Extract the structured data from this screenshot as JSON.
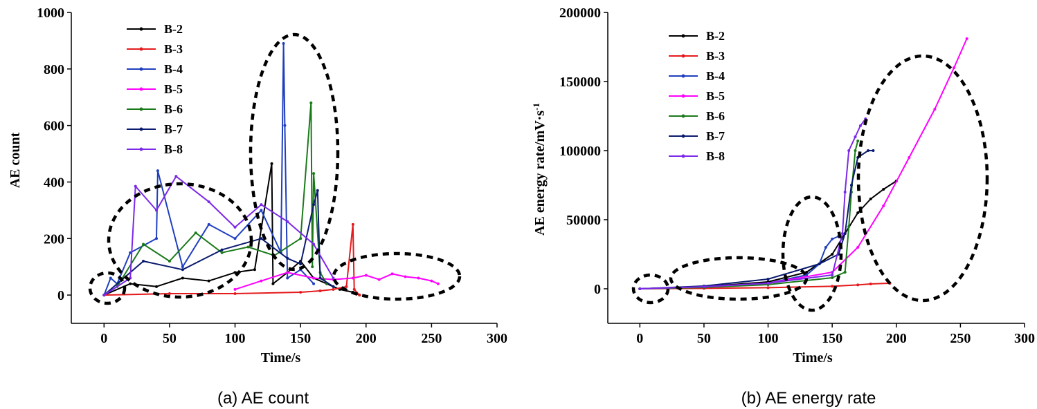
{
  "chart_data": [
    {
      "type": "line",
      "panel": "a",
      "caption": "(a) AE count",
      "xlabel": "Time/s",
      "ylabel": "AE count",
      "xlim": [
        -25,
        300
      ],
      "ylim": [
        -100,
        1000
      ],
      "xticks": [
        "0",
        "50",
        "100",
        "150",
        "200",
        "250",
        "300"
      ],
      "yticks": [
        "0",
        "200",
        "400",
        "600",
        "800",
        "1000"
      ],
      "legend": [
        "B-2",
        "B-3",
        "B-4",
        "B-5",
        "B-6",
        "B-7",
        "B-8"
      ],
      "series": [
        {
          "name": "B-2",
          "color": "#000000",
          "x": [
            0,
            20,
            40,
            60,
            80,
            100,
            115,
            128,
            129,
            140,
            150,
            160,
            170,
            180,
            190,
            195
          ],
          "values": [
            0,
            40,
            30,
            60,
            50,
            80,
            90,
            465,
            40,
            80,
            120,
            60,
            40,
            20,
            10,
            0
          ]
        },
        {
          "name": "B-3",
          "color": "#e41a1c",
          "x": [
            0,
            50,
            100,
            150,
            165,
            175,
            185,
            190,
            191,
            195
          ],
          "values": [
            0,
            5,
            5,
            10,
            15,
            20,
            30,
            250,
            20,
            0
          ]
        },
        {
          "name": "B-4",
          "color": "#1f3fbf",
          "x": [
            0,
            5,
            10,
            20,
            40,
            41,
            60,
            80,
            100,
            120,
            135,
            137,
            138,
            140,
            150,
            160
          ],
          "values": [
            0,
            60,
            40,
            150,
            200,
            440,
            100,
            250,
            200,
            300,
            150,
            890,
            600,
            60,
            90,
            40
          ]
        },
        {
          "name": "B-5",
          "color": "#ff00ff",
          "x": [
            100,
            120,
            140,
            160,
            175,
            190,
            200,
            210,
            220,
            230,
            240,
            250,
            255
          ],
          "values": [
            20,
            50,
            80,
            60,
            55,
            60,
            70,
            55,
            75,
            65,
            60,
            50,
            40
          ]
        },
        {
          "name": "B-6",
          "color": "#1a7a1a",
          "x": [
            10,
            30,
            50,
            70,
            90,
            110,
            130,
            150,
            158,
            159,
            160,
            165,
            170
          ],
          "values": [
            30,
            180,
            120,
            220,
            150,
            170,
            140,
            200,
            680,
            100,
            430,
            80,
            40
          ]
        },
        {
          "name": "B-7",
          "color": "#0a1a6e",
          "x": [
            0,
            30,
            60,
            90,
            120,
            140,
            150,
            160,
            163,
            165,
            175
          ],
          "values": [
            0,
            120,
            90,
            160,
            200,
            130,
            110,
            320,
            370,
            60,
            30
          ]
        },
        {
          "name": "B-8",
          "color": "#7b28e8",
          "x": [
            0,
            20,
            24,
            40,
            55,
            80,
            100,
            120,
            140,
            160,
            175
          ],
          "values": [
            0,
            60,
            385,
            300,
            420,
            330,
            240,
            320,
            260,
            180,
            60
          ]
        }
      ],
      "annotations": [
        "dashed ellipse around early-stage activity",
        "dashed ellipse around peak activity",
        "dashed ellipse around late-stage activity"
      ]
    },
    {
      "type": "line",
      "panel": "b",
      "caption": "(b) AE energy rate",
      "xlabel": "Time/s",
      "ylabel": "AE energy rate/mV·s",
      "ylabel_sup": "-1",
      "xlim": [
        -25,
        300
      ],
      "ylim": [
        -25000,
        200000
      ],
      "xticks": [
        "0",
        "50",
        "100",
        "150",
        "200",
        "250",
        "300"
      ],
      "yticks": [
        "0",
        "50000",
        "100000",
        "150000",
        "200000"
      ],
      "legend": [
        "B-2",
        "B-3",
        "B-4",
        "B-5",
        "B-6",
        "B-7",
        "B-8"
      ],
      "series": [
        {
          "name": "B-2",
          "color": "#000000",
          "x": [
            0,
            50,
            100,
            130,
            150,
            160,
            170,
            180,
            190,
            200
          ],
          "values": [
            0,
            1500,
            5000,
            12000,
            25000,
            40000,
            55000,
            65000,
            72000,
            78000
          ]
        },
        {
          "name": "B-3",
          "color": "#e41a1c",
          "x": [
            0,
            50,
            100,
            150,
            170,
            180,
            195
          ],
          "values": [
            0,
            300,
            800,
            1800,
            2800,
            3500,
            4000
          ]
        },
        {
          "name": "B-4",
          "color": "#1f3fbf",
          "x": [
            0,
            50,
            100,
            130,
            140,
            145,
            150,
            155,
            157
          ],
          "values": [
            0,
            1500,
            4000,
            10000,
            18000,
            30000,
            36000,
            38000,
            37000
          ]
        },
        {
          "name": "B-5",
          "color": "#ff00ff",
          "x": [
            0,
            50,
            100,
            150,
            170,
            190,
            210,
            230,
            245,
            255
          ],
          "values": [
            0,
            1500,
            4000,
            12000,
            30000,
            60000,
            95000,
            130000,
            160000,
            181000
          ]
        },
        {
          "name": "B-6",
          "color": "#1a7a1a",
          "x": [
            0,
            50,
            100,
            150,
            160,
            163,
            165,
            168,
            170
          ],
          "values": [
            0,
            1000,
            3000,
            8000,
            12000,
            45000,
            70000,
            100000,
            107000
          ]
        },
        {
          "name": "B-7",
          "color": "#0a1a6e",
          "x": [
            0,
            50,
            100,
            140,
            155,
            160,
            165,
            170,
            178,
            182
          ],
          "values": [
            0,
            2000,
            7000,
            18000,
            25000,
            40000,
            75000,
            95000,
            100000,
            100000
          ]
        },
        {
          "name": "B-8",
          "color": "#7b28e8",
          "x": [
            0,
            50,
            100,
            150,
            158,
            160,
            163,
            168,
            172,
            176
          ],
          "values": [
            0,
            1500,
            4000,
            10000,
            40000,
            70000,
            100000,
            110000,
            118000,
            123000
          ]
        }
      ],
      "annotations": [
        "dashed ellipse around initial stage",
        "dashed ellipse around stable growth stage",
        "dashed ellipse around transition stage",
        "dashed ellipse around rapid growth stage"
      ]
    }
  ]
}
